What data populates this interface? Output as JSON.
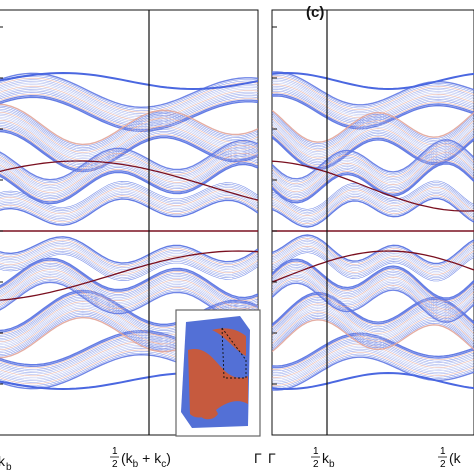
{
  "chart_data": [
    {
      "type": "line",
      "panel": "left",
      "x_ticks": [
        {
          "label": "k",
          "sub": "b",
          "pos": 0.0
        },
        {
          "frac": "1/2",
          "label": "(k",
          "sub": "b",
          "mid": " + k",
          "sub2": "c",
          "end": ")",
          "pos": 0.5
        }
      ],
      "x_end_label": "Γ",
      "ylim": [
        -1,
        1
      ],
      "zero_line": true,
      "band_color_scale": [
        "#4a67e0",
        "#f2f2f8",
        "#d0563a"
      ],
      "highlight_color": "#7a1020",
      "inset": {
        "regions": [
          "#4f6fd8",
          "#c65a3e"
        ]
      }
    },
    {
      "type": "line",
      "panel": "right",
      "panel_label": "(c)",
      "x_start_label": "Γ",
      "x_ticks": [
        {
          "frac": "1/2",
          "label": "k",
          "sub": "b",
          "pos": 0.5
        },
        {
          "frac": "1/2",
          "label": "(k",
          "pos": 1.0
        }
      ],
      "ylim": [
        -1,
        1
      ],
      "zero_line": true,
      "band_color_scale": [
        "#4a67e0",
        "#f2f2f8",
        "#d0563a"
      ],
      "highlight_color": "#7a1020"
    }
  ]
}
